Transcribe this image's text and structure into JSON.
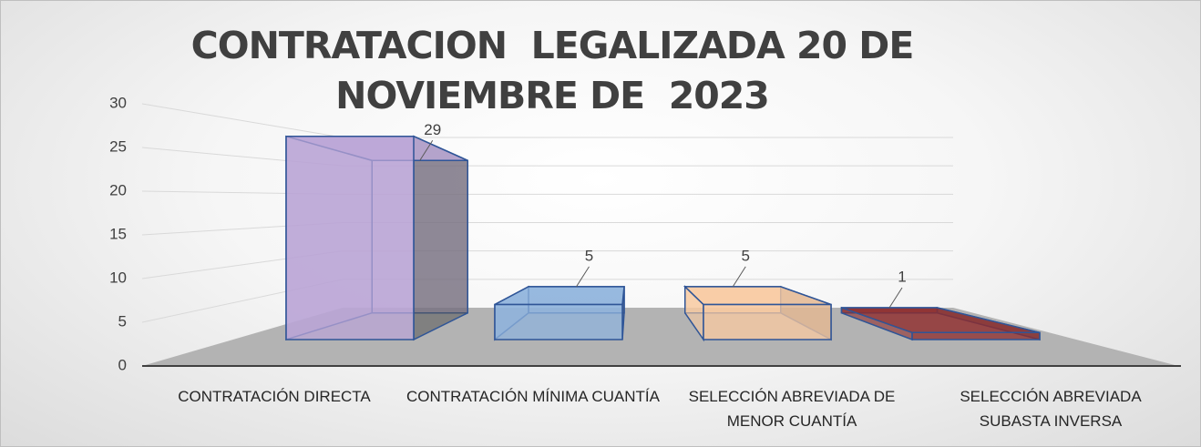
{
  "chart_data": {
    "type": "bar3d",
    "title": "CONTRATACION  LEGALIZADA 20 DE NOVIEMBRE DE  2023",
    "categories": [
      "CONTRATACIÓN DIRECTA",
      "CONTRATACIÓN MÍNIMA CUANTÍA",
      "SELECCIÓN ABREVIADA DE MENOR CUANTÍA",
      "SELECCIÓN ABREVIADA SUBASTA INVERSA"
    ],
    "values": [
      29,
      5,
      5,
      1
    ],
    "colors": [
      "#b9a4d6",
      "#8fb3dc",
      "#f9c9a0",
      "#8e2b2b"
    ],
    "ylim": [
      0,
      30
    ],
    "yticks": [
      0,
      5,
      10,
      15,
      20,
      25,
      30
    ],
    "grid": true
  }
}
